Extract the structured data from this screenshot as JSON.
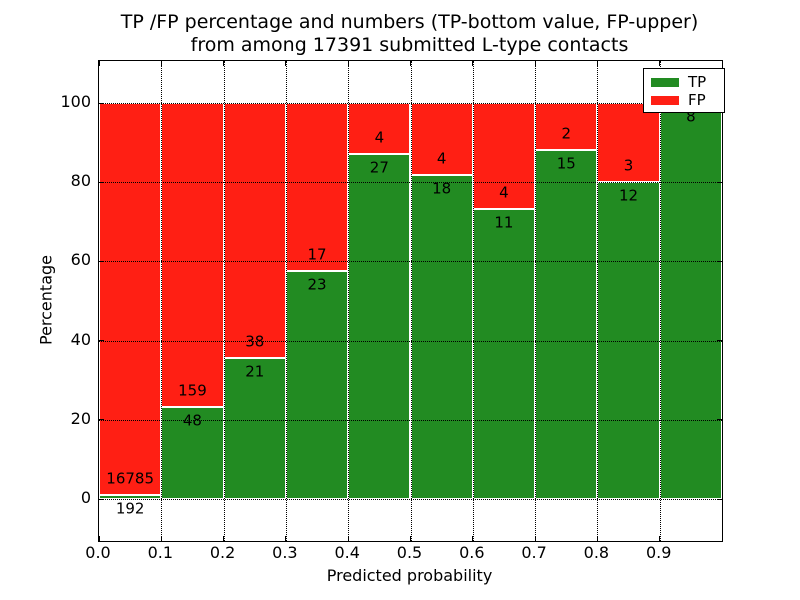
{
  "figure": {
    "title_line1": "TP /FP percentage and numbers (TP-bottom value, FP-upper)",
    "title_line2": "from among 17391 submitted L-type contacts"
  },
  "chart_data": {
    "type": "bar",
    "subtype": "stacked-percentage",
    "title": "TP /FP percentage and numbers (TP-bottom value, FP-upper) from among 17391 submitted L-type contacts",
    "total_contacts": 17391,
    "xlabel": "Predicted probability",
    "ylabel": "Percentage",
    "x_tick_labels": [
      "0.0",
      "0.1",
      "0.2",
      "0.3",
      "0.4",
      "0.5",
      "0.6",
      "0.7",
      "0.8",
      "0.9"
    ],
    "y_ticks": [
      0,
      20,
      40,
      60,
      80,
      100
    ],
    "xlim": [
      0.0,
      1.0
    ],
    "ylim": [
      -10.6,
      110.6
    ],
    "grid": {
      "visible": true,
      "style": "dotted",
      "color": "#000000"
    },
    "bar_edge_color": "#ffffff",
    "categories": [
      "0.0-0.1",
      "0.1-0.2",
      "0.2-0.3",
      "0.3-0.4",
      "0.4-0.5",
      "0.5-0.6",
      "0.6-0.7",
      "0.7-0.8",
      "0.8-0.9",
      "0.9-1.0"
    ],
    "series": [
      {
        "name": "TP",
        "color": "#228b22",
        "values": [
          192,
          48,
          21,
          23,
          27,
          18,
          11,
          15,
          12,
          8
        ]
      },
      {
        "name": "FP",
        "color": "#ff1f14",
        "values": [
          16785,
          159,
          38,
          17,
          4,
          4,
          4,
          2,
          3,
          0
        ]
      }
    ],
    "tp_percent_per_bin": [
      1.13,
      23.19,
      35.59,
      57.5,
      87.1,
      81.82,
      73.33,
      88.24,
      80.0,
      100.0
    ],
    "legend": {
      "position": "upper right",
      "entries": [
        {
          "label": "TP",
          "color": "#228b22"
        },
        {
          "label": "FP",
          "color": "#ff1f14"
        }
      ]
    }
  }
}
